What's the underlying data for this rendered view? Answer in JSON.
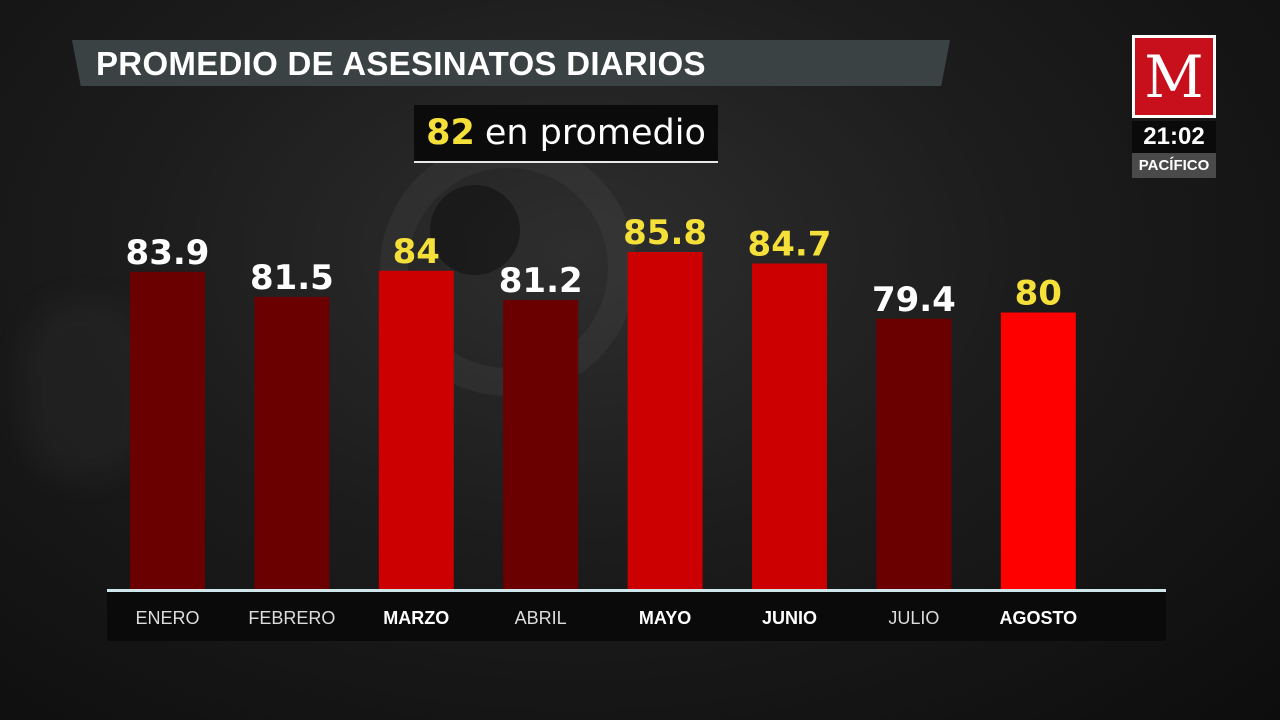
{
  "title": "PROMEDIO DE ASESINATOS DIARIOS",
  "average": {
    "value": "82",
    "label": "en promedio"
  },
  "brand": {
    "logo_letter": "M",
    "time": "21:02",
    "timezone": "PACÍFICO"
  },
  "colors": {
    "dark_bar": "#6b0000",
    "mid_bar": "#cc0000",
    "bright_bar": "#ff0000",
    "highlight_label": "#f5e03a",
    "normal_label": "#ffffff"
  },
  "chart_data": {
    "type": "bar",
    "categories": [
      "ENERO",
      "FEBRERO",
      "MARZO",
      "ABRIL",
      "MAYO",
      "JUNIO",
      "JULIO",
      "AGOSTO"
    ],
    "values": [
      83.9,
      81.5,
      84,
      81.2,
      85.8,
      84.7,
      79.4,
      80
    ],
    "value_labels": [
      "83.9",
      "81.5",
      "84",
      "81.2",
      "85.8",
      "84.7",
      "79.4",
      "80"
    ],
    "highlighted": [
      false,
      false,
      true,
      false,
      true,
      true,
      false,
      true
    ],
    "bar_colors": [
      "#6b0000",
      "#6b0000",
      "#cc0000",
      "#6b0000",
      "#cc0000",
      "#cc0000",
      "#6b0000",
      "#ff0000"
    ],
    "ylim": [
      53.5,
      85.8
    ],
    "grid": false,
    "title": "PROMEDIO DE ASESINATOS DIARIOS"
  }
}
